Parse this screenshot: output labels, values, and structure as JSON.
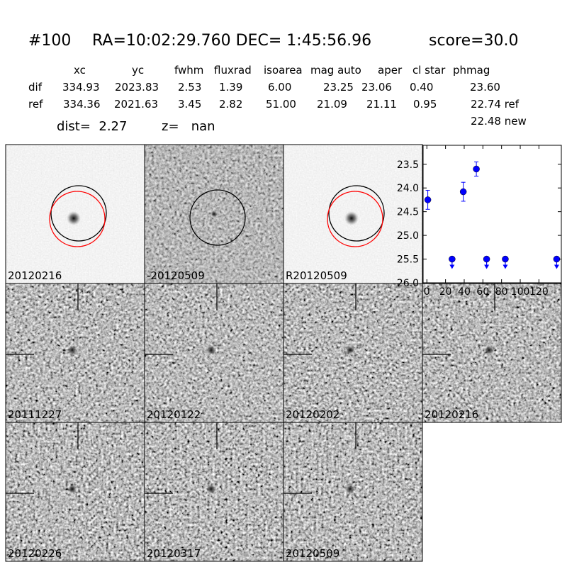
{
  "header": {
    "id": "#100",
    "coords": "RA=10:02:29.760 DEC= 1:45:56.96",
    "score": "score=30.0"
  },
  "table": {
    "columns": [
      "xc",
      "yc",
      "fwhm",
      "fluxrad",
      "isoarea",
      "mag auto",
      "aper",
      "cl star",
      "phmag"
    ],
    "rows": [
      [
        "dif",
        "334.93",
        "2023.83",
        "2.53",
        "1.39",
        "6.00",
        "23.25",
        "23.06",
        "0.40",
        "23.60"
      ],
      [
        "ref",
        "334.36",
        "2021.63",
        "3.45",
        "2.82",
        "51.00",
        "21.09",
        "21.11",
        "0.95",
        "22.74 ref"
      ]
    ],
    "new": "22.48 new"
  },
  "info": {
    "dist": "dist=  2.27",
    "z": "z=   nan"
  },
  "stamps": [
    {
      "label": "20120216"
    },
    {
      "label": "-20120509"
    },
    {
      "label": "R20120509"
    },
    {
      "label": "20111227"
    },
    {
      "label": "20120122"
    },
    {
      "label": "20120202"
    },
    {
      "label": "20120216",
      "label_color": "#ff0000"
    },
    {
      "label": "20120226"
    },
    {
      "label": "20120317"
    },
    {
      "label": "20120509"
    }
  ],
  "chart_data": {
    "type": "scatter",
    "xlim": [
      -4,
      144
    ],
    "xticks": [
      0,
      20,
      40,
      60,
      80,
      100,
      120
    ],
    "ylim": [
      26.0,
      23.1
    ],
    "yticks": [
      {
        "value": 23.5,
        "label": "23.5"
      },
      {
        "value": 24.0,
        "label": "24.0"
      },
      {
        "value": 24.5,
        "label": "24.5"
      },
      {
        "value": 25.0,
        "label": "25.0"
      },
      {
        "value": 25.5,
        "label": "25.5"
      },
      {
        "value": 26.0,
        "label": "26.0"
      }
    ],
    "series": [
      {
        "color": "#0000ff",
        "x": [
          1,
          39,
          53
        ],
        "values": [
          24.25,
          24.08,
          23.6
        ],
        "errors": [
          0.2,
          0.2,
          0.15
        ]
      },
      {
        "color": "#0000ff",
        "marker": "upper-limit",
        "x": [
          27,
          64,
          84,
          139
        ],
        "values": [
          25.5,
          25.5,
          25.5,
          25.5
        ]
      }
    ]
  }
}
